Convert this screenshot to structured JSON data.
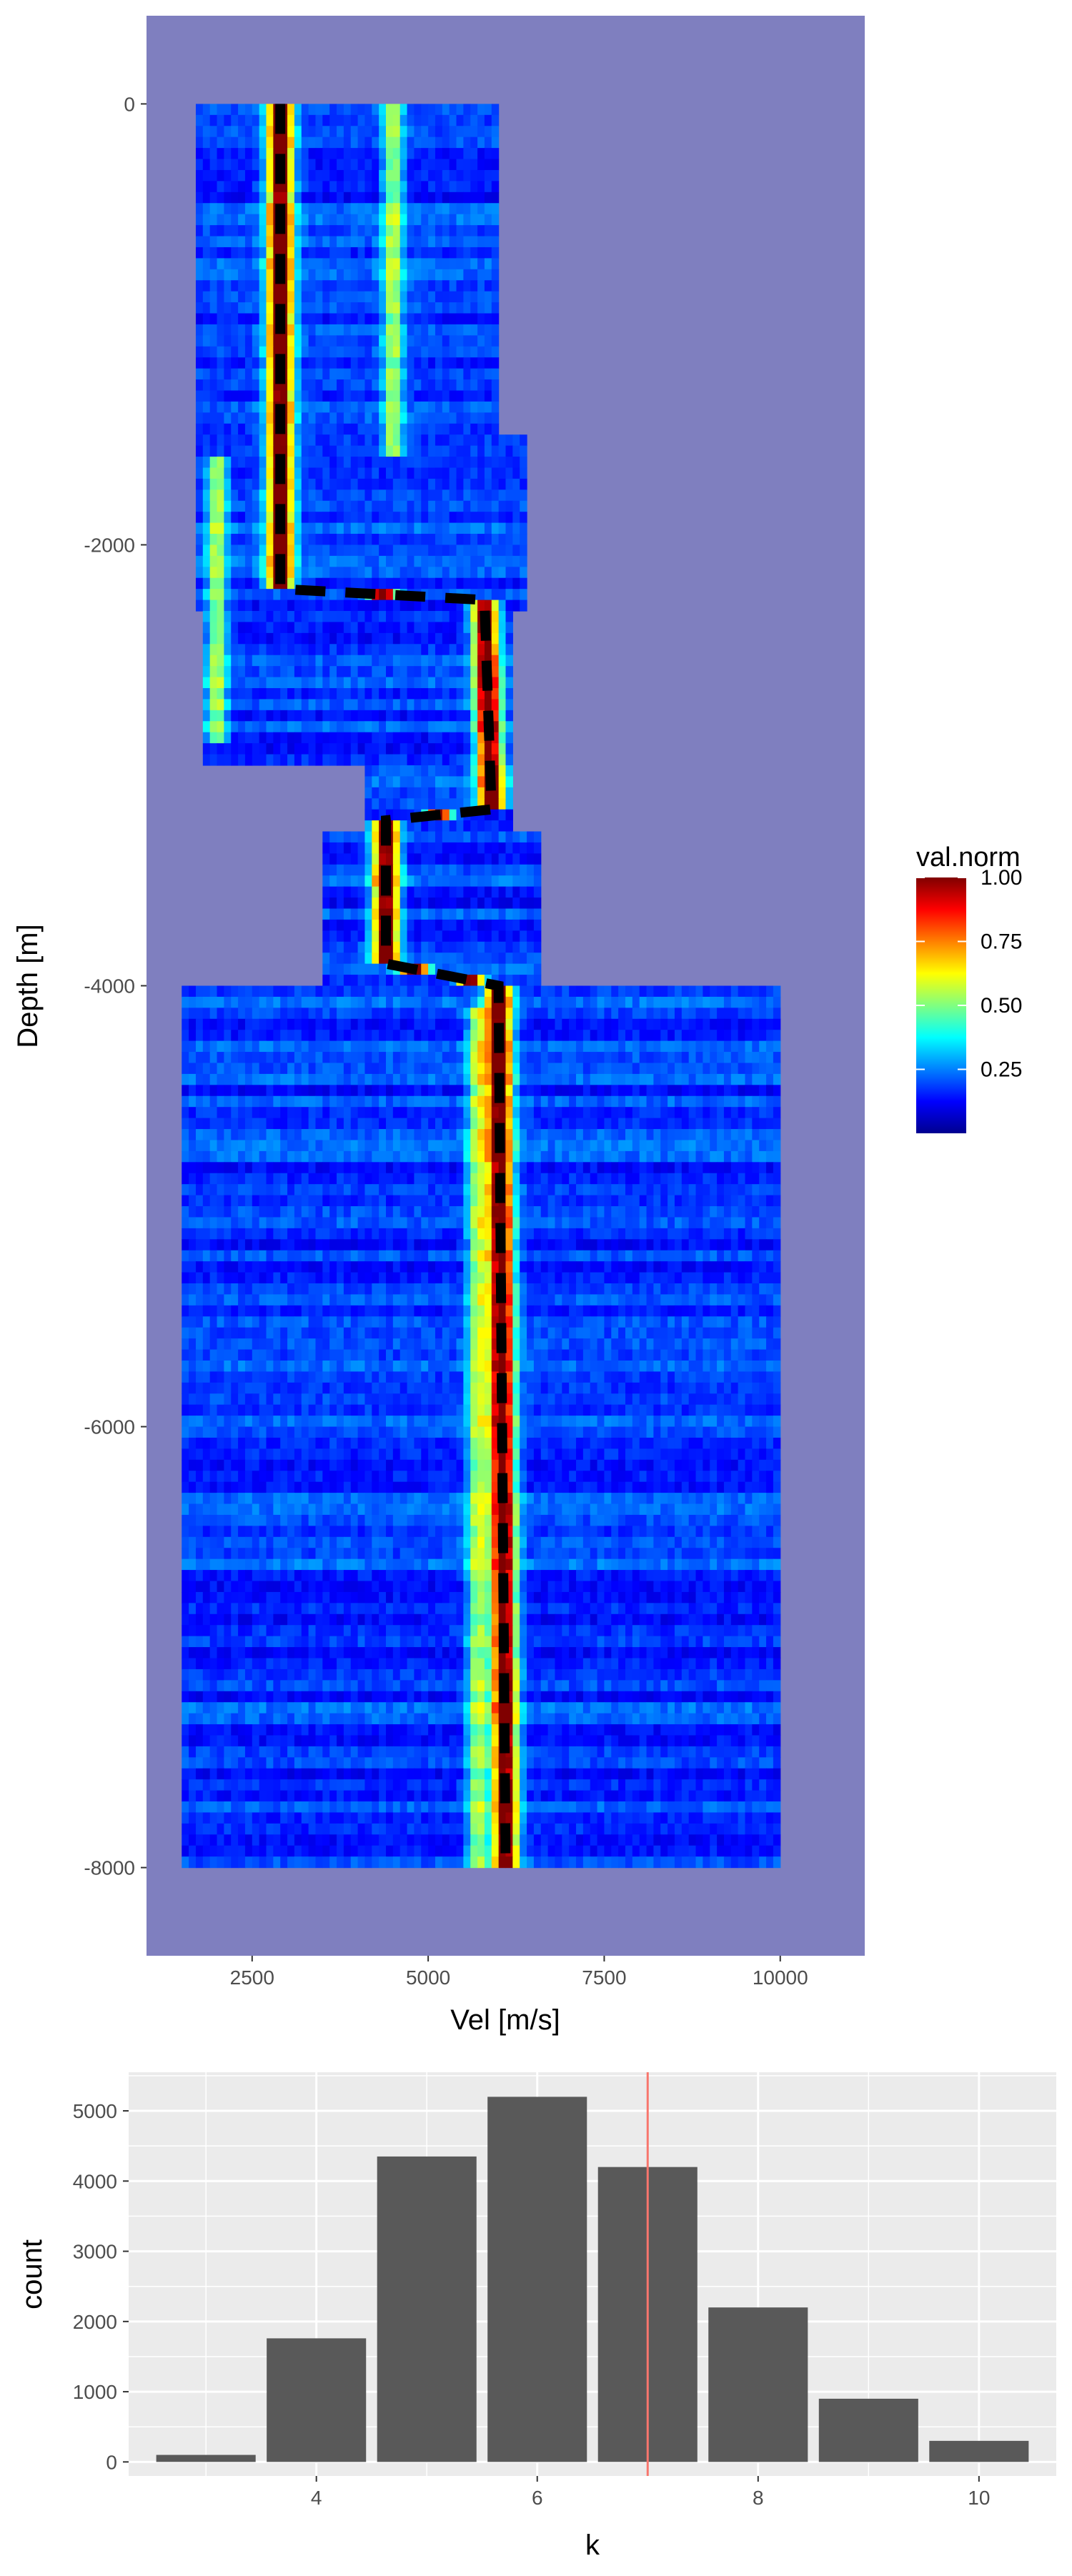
{
  "colors": {
    "na_background": "#7f7fbf",
    "bar_fill": "#595959",
    "panel_background": "#ebebeb",
    "grid_line": "#ffffff",
    "reference_line": "#f8766d",
    "best_path": "#000000",
    "colormap": [
      "#00008f",
      "#0000ff",
      "#0080ff",
      "#00ffff",
      "#80ff80",
      "#ffff00",
      "#ff8000",
      "#ff0000",
      "#800000"
    ]
  },
  "chart_data": [
    {
      "type": "heatmap",
      "title": "",
      "xlabel": "Vel [m/s]",
      "ylabel": "Depth [m]",
      "xlim": [
        1000,
        11200
      ],
      "ylim": [
        -8400,
        400
      ],
      "xticks": [
        2500,
        5000,
        7500,
        10000
      ],
      "xtick_labels": [
        "2500",
        "5000",
        "7500",
        "10000"
      ],
      "yticks": [
        0,
        -2000,
        -4000,
        -6000,
        -8000
      ],
      "ytick_labels": [
        "0",
        "-2000",
        "-4000",
        "-6000",
        "-8000"
      ],
      "legend": {
        "title": "val.norm",
        "position": "right",
        "range": [
          0,
          1
        ],
        "ticks": [
          1.0,
          0.75,
          0.5,
          0.25
        ],
        "tick_labels": [
          "1.00",
          "0.75",
          "0.50",
          "0.25"
        ]
      },
      "grid": false,
      "velocity_envelope": [
        {
          "depth": [
            0,
            -1500
          ],
          "vel_min": 1700,
          "vel_max": 6000
        },
        {
          "depth": [
            -1500,
            -2300
          ],
          "vel_min": 1700,
          "vel_max": 6400
        },
        {
          "depth": [
            -2300,
            -3000
          ],
          "vel_min": 1800,
          "vel_max": 6200
        },
        {
          "depth": [
            -3000,
            -3300
          ],
          "vel_min": 4100,
          "vel_max": 6200
        },
        {
          "depth": [
            -3300,
            -4000
          ],
          "vel_min": 3500,
          "vel_max": 6600
        },
        {
          "depth": [
            -4000,
            -8000
          ],
          "vel_min": 1500,
          "vel_max": 10000
        }
      ],
      "peak_velocity_trend": [
        {
          "depth": 0,
          "velocity": 2900
        },
        {
          "depth": -2200,
          "velocity": 2900
        },
        {
          "depth": -2250,
          "velocity": 5800
        },
        {
          "depth": -3200,
          "velocity": 5900
        },
        {
          "depth": -3250,
          "velocity": 4400
        },
        {
          "depth": -3900,
          "velocity": 4400
        },
        {
          "depth": -4000,
          "velocity": 6000
        },
        {
          "depth": -8000,
          "velocity": 6100
        }
      ],
      "secondary_maxima": [
        {
          "depth": [
            0,
            -1600
          ],
          "velocity": 4500
        },
        {
          "depth": [
            -1600,
            -2900
          ],
          "velocity": 2000
        },
        {
          "depth": [
            -4100,
            -8000
          ],
          "velocity": 5700
        }
      ]
    },
    {
      "type": "bar",
      "title": "",
      "xlabel": "k",
      "ylabel": "count",
      "categories": [
        3,
        4,
        5,
        6,
        7,
        8,
        9,
        10
      ],
      "values": [
        100,
        1760,
        4350,
        5200,
        4200,
        2200,
        900,
        300
      ],
      "xlim": [
        2.3,
        10.7
      ],
      "ylim": [
        -200,
        5550
      ],
      "xticks": [
        4,
        6,
        8,
        10
      ],
      "xtick_labels": [
        "4",
        "6",
        "8",
        "10"
      ],
      "yticks": [
        0,
        1000,
        2000,
        3000,
        4000,
        5000
      ],
      "ytick_labels": [
        "0",
        "1000",
        "2000",
        "3000",
        "4000",
        "5000"
      ],
      "reference_line_x": 7,
      "grid": true
    }
  ]
}
